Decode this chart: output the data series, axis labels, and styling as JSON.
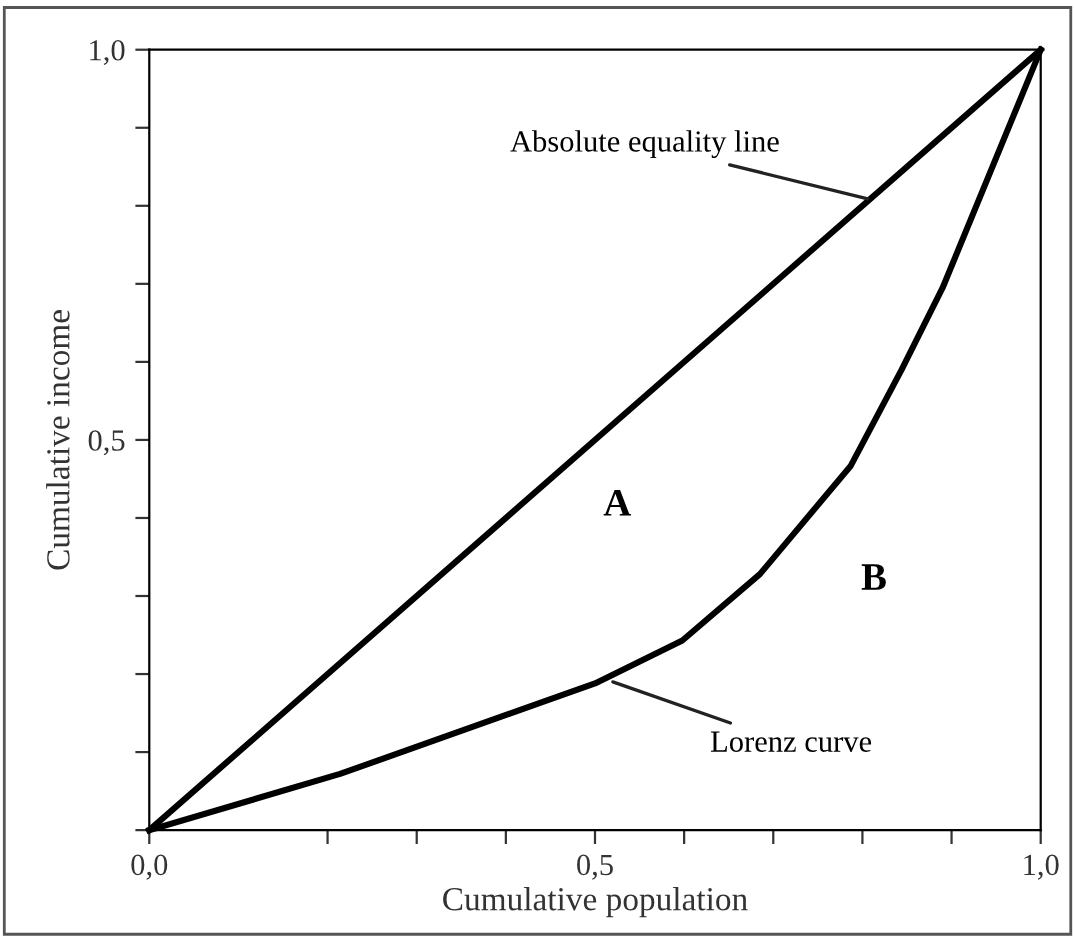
{
  "chart_data": {
    "type": "line",
    "xlabel": "Cumulative population",
    "ylabel": "Cumulative income",
    "series": [
      {
        "color": "#000000",
        "x": [
          0,
          1
        ],
        "values": [
          0,
          1
        ]
      },
      {
        "color": "#000000",
        "x": [
          0,
          0.214,
          0.5,
          0.598,
          0.685,
          0.787,
          0.844,
          0.89,
          1
        ],
        "values": [
          0,
          0.072,
          0.188,
          0.243,
          0.328,
          0.467,
          0.59,
          0.695,
          1
        ]
      }
    ],
    "xlim": [
      0,
      1
    ],
    "ylim": [
      0,
      1
    ],
    "xticks": [
      {
        "value": 0,
        "label": "0,0"
      },
      {
        "value": 0.2,
        "label": null
      },
      {
        "value": 0.3,
        "label": null
      },
      {
        "value": 0.4,
        "label": null
      },
      {
        "value": 0.5,
        "label": "0,5"
      },
      {
        "value": 0.6,
        "label": null
      },
      {
        "value": 0.7,
        "label": null
      },
      {
        "value": 0.8,
        "label": null
      },
      {
        "value": 0.9,
        "label": null
      },
      {
        "value": 1,
        "label": "1,0"
      }
    ],
    "yticks": [
      {
        "value": 0,
        "label": null
      },
      {
        "value": 0.1,
        "label": null
      },
      {
        "value": 0.2,
        "label": null
      },
      {
        "value": 0.3,
        "label": null
      },
      {
        "value": 0.4,
        "label": null
      },
      {
        "value": 0.5,
        "label": "0,5"
      },
      {
        "value": 0.6,
        "label": null
      },
      {
        "value": 0.7,
        "label": null
      },
      {
        "value": 0.8,
        "label": null
      },
      {
        "value": 0.9,
        "label": null
      },
      {
        "value": 1,
        "label": "1,0"
      }
    ],
    "annotations": [
      {
        "text": "Absolute equality line",
        "x": 0.806,
        "y": 0.809
      },
      {
        "text": "Lorenz curve",
        "x": 0.52,
        "y": 0.19
      },
      "A",
      "B"
    ],
    "grid": false,
    "legend": false,
    "marker": "none",
    "line_style": "solid"
  }
}
